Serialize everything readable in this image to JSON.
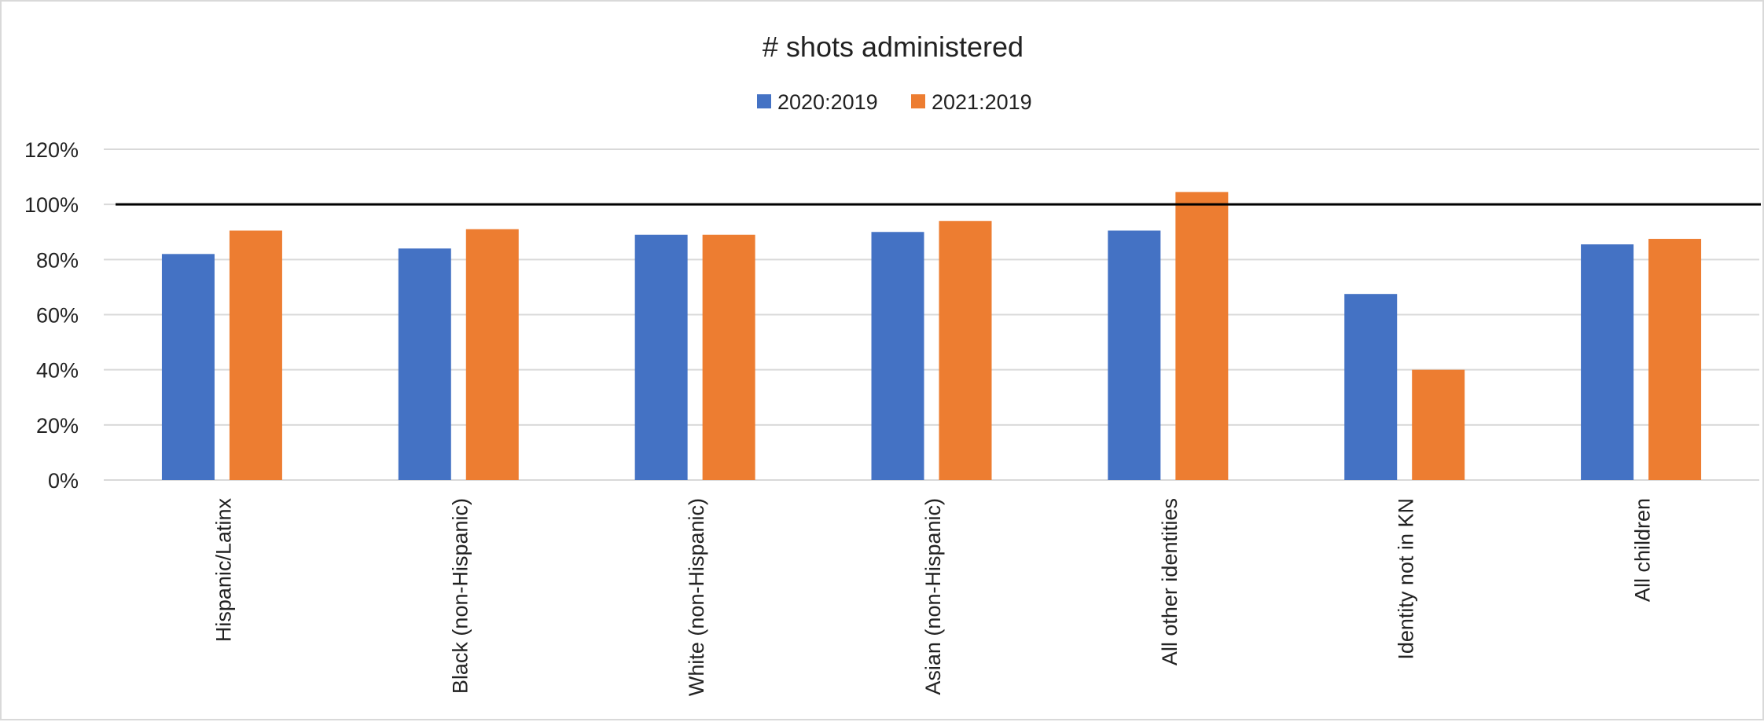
{
  "chart_data": {
    "type": "bar",
    "title": "# shots administered",
    "xlabel": "",
    "ylabel": "",
    "categories": [
      "Hispanic/Latinx",
      "Black (non-Hispanic)",
      "White (non-Hispanic)",
      "Asian (non-Hispanic)",
      "All other identities",
      "Identity not in KN",
      "All children"
    ],
    "series": [
      {
        "name": "2020:2019",
        "color": "#4472c4",
        "values": [
          82,
          84,
          89,
          90,
          90.5,
          67.5,
          85.5
        ]
      },
      {
        "name": "2021:2019",
        "color": "#ed7d31",
        "values": [
          90.5,
          91,
          89,
          94,
          104.5,
          40,
          87.5
        ]
      }
    ],
    "ylim": [
      0,
      120
    ],
    "yticks": [
      0,
      20,
      40,
      60,
      80,
      100,
      120
    ],
    "ytick_labels": [
      "0%",
      "20%",
      "40%",
      "60%",
      "80%",
      "100%",
      "120%"
    ],
    "reference_line": 100,
    "reference_line_color": "#000000",
    "grid": true,
    "gridline_color": "#d9d9d9",
    "legend_position": "top"
  }
}
